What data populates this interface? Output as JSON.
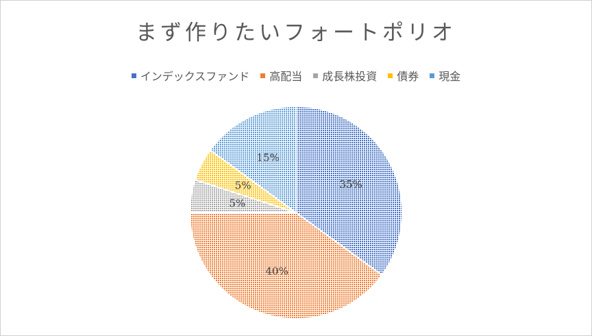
{
  "chart_data": {
    "type": "pie",
    "title": "まず作りたいフォートポリオ",
    "categories": [
      "インデックスファンド",
      "高配当",
      "成長株投資",
      "債券",
      "現金"
    ],
    "values": [
      35,
      40,
      5,
      5,
      15
    ],
    "labels": [
      "35%",
      "40%",
      "5%",
      "5%",
      "15%"
    ],
    "colors": [
      "#4472c4",
      "#ed7d31",
      "#a5a5a5",
      "#ffc000",
      "#5b9bd5"
    ],
    "legend_position": "top",
    "start_angle_deg": 0,
    "direction": "clockwise"
  }
}
